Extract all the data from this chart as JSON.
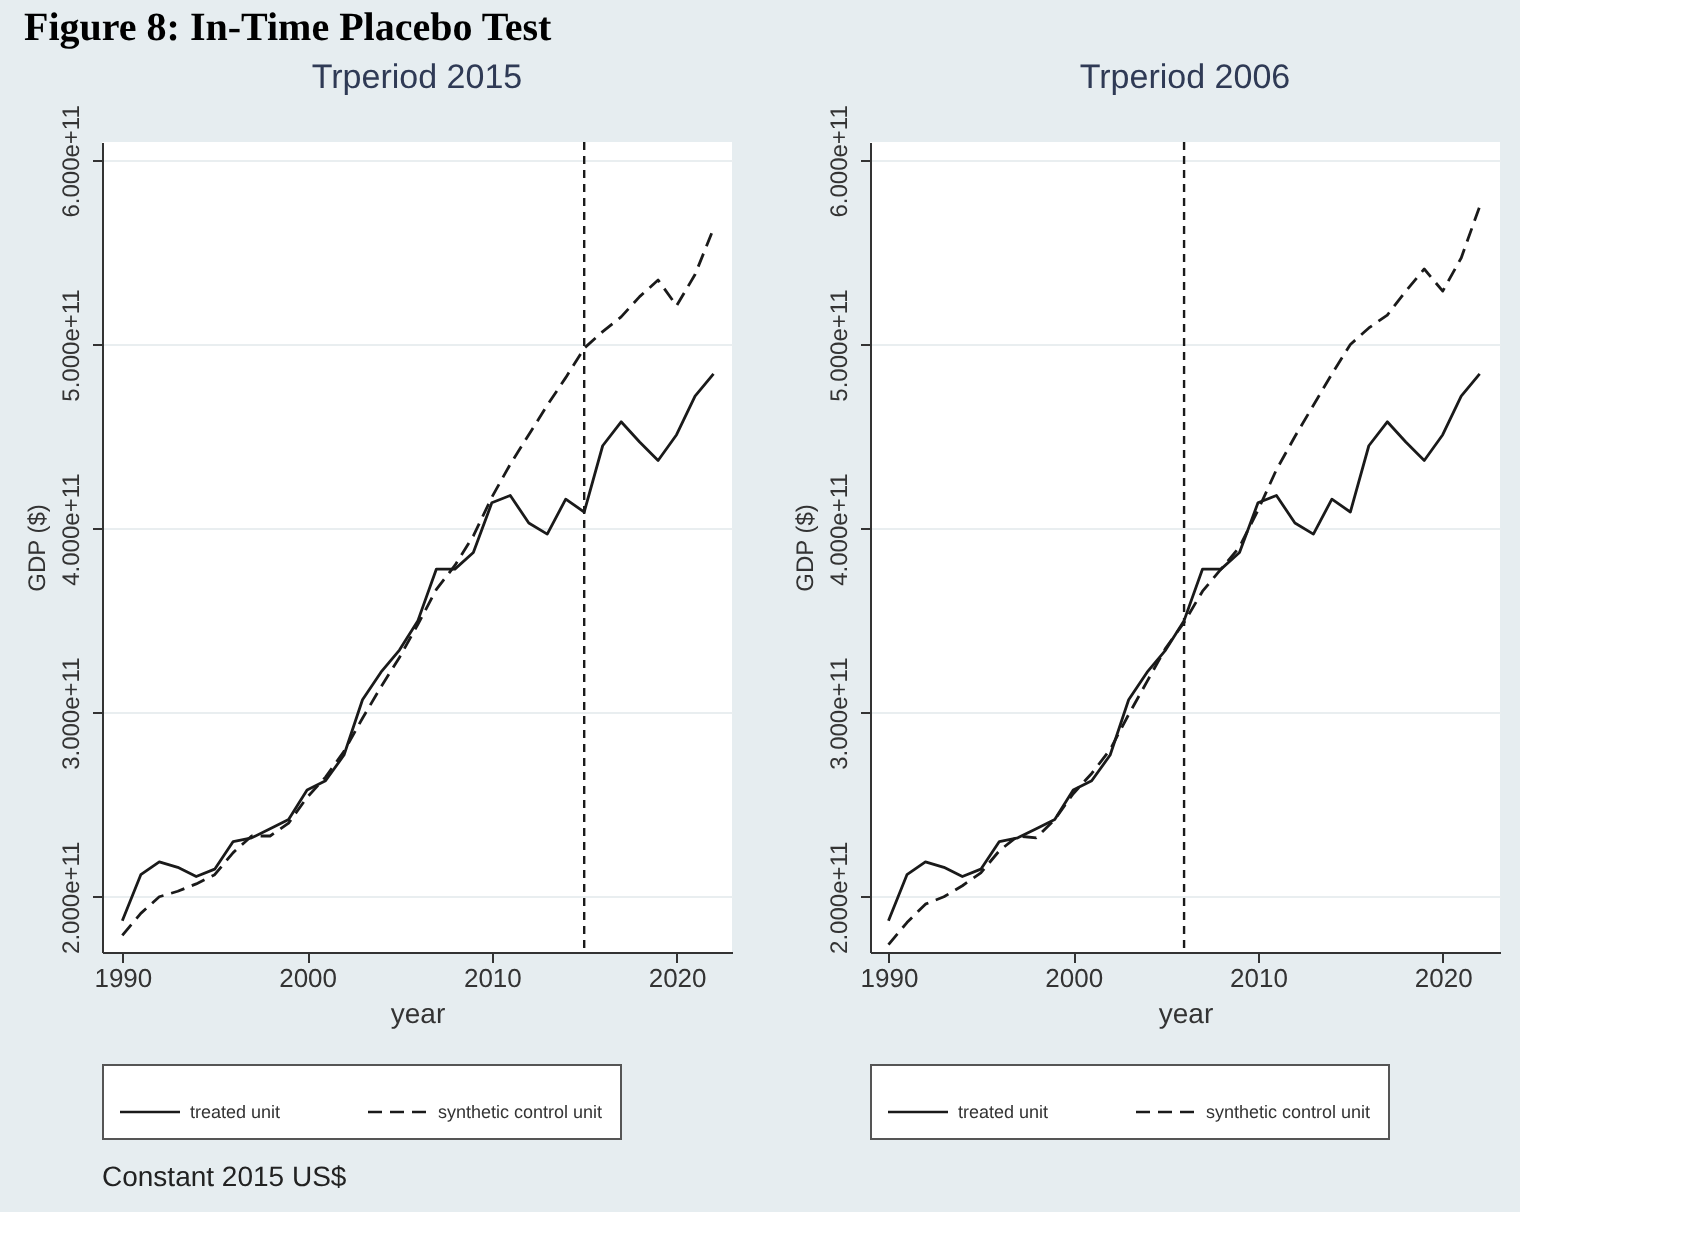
{
  "chart_data": [
    {
      "type": "line",
      "title": "Trperiod 2015",
      "xlabel": "year",
      "ylabel": "GDP ($)",
      "x": [
        1990,
        1991,
        1992,
        1993,
        1994,
        1995,
        1996,
        1997,
        1998,
        1999,
        2000,
        2001,
        2002,
        2003,
        2004,
        2005,
        2006,
        2007,
        2008,
        2009,
        2010,
        2011,
        2012,
        2013,
        2014,
        2015,
        2016,
        2017,
        2018,
        2019,
        2020,
        2021,
        2022
      ],
      "series": [
        {
          "name": "treated unit",
          "color": "#1a1a1a",
          "line_style": "solid",
          "values": [
            187000000000.0,
            212000000000.0,
            219000000000.0,
            216000000000.0,
            211000000000.0,
            215000000000.0,
            230000000000.0,
            232000000000.0,
            237000000000.0,
            242000000000.0,
            258000000000.0,
            263000000000.0,
            277000000000.0,
            307000000000.0,
            322000000000.0,
            334000000000.0,
            350000000000.0,
            378000000000.0,
            378000000000.0,
            387000000000.0,
            414000000000.0,
            418000000000.0,
            403000000000.0,
            397000000000.0,
            416000000000.0,
            409000000000.0,
            445000000000.0,
            458000000000.0,
            447000000000.0,
            437000000000.0,
            451000000000.0,
            472000000000.0,
            484000000000.0
          ]
        },
        {
          "name": "synthetic control unit",
          "color": "#1a1a1a",
          "line_style": "dashed",
          "values": [
            179000000000.0,
            191000000000.0,
            200000000000.0,
            203000000000.0,
            207000000000.0,
            212000000000.0,
            224000000000.0,
            233000000000.0,
            233000000000.0,
            240000000000.0,
            254000000000.0,
            265000000000.0,
            279000000000.0,
            297000000000.0,
            314000000000.0,
            330000000000.0,
            348000000000.0,
            367000000000.0,
            380000000000.0,
            396000000000.0,
            417000000000.0,
            435000000000.0,
            451000000000.0,
            467000000000.0,
            482000000000.0,
            498000000000.0,
            507000000000.0,
            515000000000.0,
            526000000000.0,
            535000000000.0,
            521000000000.0,
            538000000000.0,
            563000000000.0
          ]
        }
      ],
      "xlim": [
        1988.9,
        2023
      ],
      "ylim": [
        170000000000.0,
        610000000000.0
      ],
      "xticks": [
        1990,
        2000,
        2010,
        2020
      ],
      "yticks": [
        {
          "value": 200000000000.0,
          "label": "2.000e+11"
        },
        {
          "value": 300000000000.0,
          "label": "3.000e+11"
        },
        {
          "value": 400000000000.0,
          "label": "4.000e+11"
        },
        {
          "value": 500000000000.0,
          "label": "5.000e+11"
        },
        {
          "value": 600000000000.0,
          "label": "6.000e+11"
        }
      ],
      "grid": "y",
      "legend": "bottom",
      "ref_lines": [
        {
          "axis": "x",
          "value": 2015,
          "color": "#1a1a1a",
          "line_style": "dashed"
        }
      ],
      "annotations": [
        "Figure 8: In-Time Placebo Test",
        "Constant 2015 US$"
      ]
    },
    {
      "type": "line",
      "title": "Trperiod 2006",
      "xlabel": "year",
      "ylabel": "GDP ($)",
      "x": [
        1990,
        1991,
        1992,
        1993,
        1994,
        1995,
        1996,
        1997,
        1998,
        1999,
        2000,
        2001,
        2002,
        2003,
        2004,
        2005,
        2006,
        2007,
        2008,
        2009,
        2010,
        2011,
        2012,
        2013,
        2014,
        2015,
        2016,
        2017,
        2018,
        2019,
        2020,
        2021,
        2022
      ],
      "series": [
        {
          "name": "treated unit",
          "color": "#1a1a1a",
          "line_style": "solid",
          "values": [
            187000000000.0,
            212000000000.0,
            219000000000.0,
            216000000000.0,
            211000000000.0,
            215000000000.0,
            230000000000.0,
            232000000000.0,
            237000000000.0,
            242000000000.0,
            258000000000.0,
            263000000000.0,
            277000000000.0,
            307000000000.0,
            322000000000.0,
            334000000000.0,
            350000000000.0,
            378000000000.0,
            378000000000.0,
            387000000000.0,
            414000000000.0,
            418000000000.0,
            403000000000.0,
            397000000000.0,
            416000000000.0,
            409000000000.0,
            445000000000.0,
            458000000000.0,
            447000000000.0,
            437000000000.0,
            451000000000.0,
            472000000000.0,
            484000000000.0
          ]
        },
        {
          "name": "synthetic control unit",
          "color": "#1a1a1a",
          "line_style": "dashed",
          "values": [
            174000000000.0,
            186000000000.0,
            196000000000.0,
            200000000000.0,
            206000000000.0,
            213000000000.0,
            225000000000.0,
            233000000000.0,
            232000000000.0,
            242000000000.0,
            256000000000.0,
            267000000000.0,
            280000000000.0,
            299000000000.0,
            317000000000.0,
            335000000000.0,
            349000000000.0,
            366000000000.0,
            378000000000.0,
            390000000000.0,
            410000000000.0,
            432000000000.0,
            450000000000.0,
            467000000000.0,
            484000000000.0,
            500000000000.0,
            509000000000.0,
            516000000000.0,
            529000000000.0,
            541000000000.0,
            529000000000.0,
            547000000000.0,
            575000000000.0
          ]
        }
      ],
      "xlim": [
        1989,
        2023.1
      ],
      "ylim": [
        170000000000.0,
        610000000000.0
      ],
      "xticks": [
        1990,
        2000,
        2010,
        2020
      ],
      "yticks": [
        {
          "value": 200000000000.0,
          "label": "2.000e+11"
        },
        {
          "value": 300000000000.0,
          "label": "3.000e+11"
        },
        {
          "value": 400000000000.0,
          "label": "4.000e+11"
        },
        {
          "value": 500000000000.0,
          "label": "5.000e+11"
        },
        {
          "value": 600000000000.0,
          "label": "6.000e+11"
        }
      ],
      "grid": "y",
      "legend": "bottom",
      "ref_lines": [
        {
          "axis": "x",
          "value": 2006,
          "color": "#1a1a1a",
          "line_style": "dashed"
        }
      ]
    }
  ]
}
